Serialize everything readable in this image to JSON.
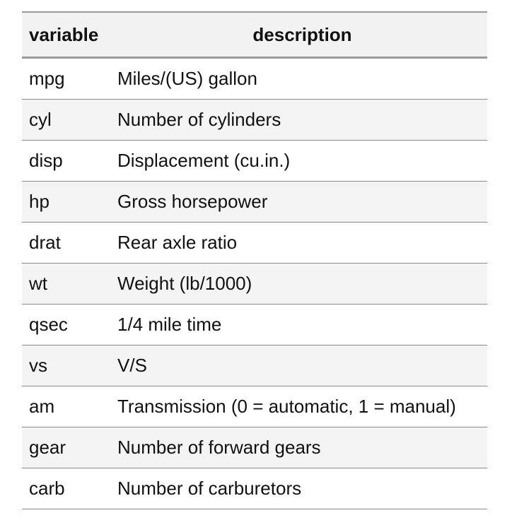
{
  "table": {
    "headers": {
      "variable": "variable",
      "description": "description"
    },
    "rows": [
      {
        "variable": "mpg",
        "description": "Miles/(US) gallon"
      },
      {
        "variable": "cyl",
        "description": "Number of cylinders"
      },
      {
        "variable": "disp",
        "description": "Displacement (cu.in.)"
      },
      {
        "variable": "hp",
        "description": "Gross horsepower"
      },
      {
        "variable": "drat",
        "description": "Rear axle ratio"
      },
      {
        "variable": "wt",
        "description": "Weight (lb/1000)"
      },
      {
        "variable": "qsec",
        "description": "1/4 mile time"
      },
      {
        "variable": "vs",
        "description": "V/S"
      },
      {
        "variable": "am",
        "description": "Transmission (0 = automatic, 1 = manual)"
      },
      {
        "variable": "gear",
        "description": "Number of forward gears"
      },
      {
        "variable": "carb",
        "description": "Number of carburetors"
      }
    ]
  }
}
